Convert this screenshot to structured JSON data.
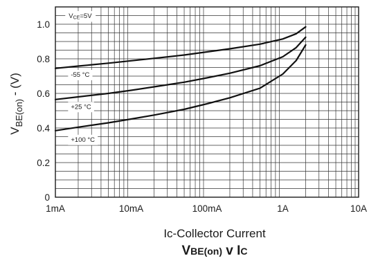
{
  "chart_data": {
    "type": "line",
    "title": "VBE(on) v IC",
    "title_parts": {
      "a": "V",
      "a_sub": "BE(on)",
      "b": " v I",
      "b_sub": "C"
    },
    "xlabel": "Ic-Collector Current",
    "ylabel": "VBE(on) - (V)",
    "ylabel_parts": {
      "a": "V",
      "a_sub": "BE(on)",
      "b": " - (V)"
    },
    "x_scale": "log",
    "x_unit": "A",
    "xlim": [
      0.001,
      10
    ],
    "ylim": [
      0,
      1.1
    ],
    "x_ticks": [
      {
        "value": 0.001,
        "label": "1mA"
      },
      {
        "value": 0.01,
        "label": "10mA"
      },
      {
        "value": 0.1,
        "label": "100mA"
      },
      {
        "value": 1,
        "label": "1A"
      },
      {
        "value": 10,
        "label": "10A"
      }
    ],
    "y_ticks": [
      {
        "value": 0,
        "label": "0"
      },
      {
        "value": 0.2,
        "label": "0.2"
      },
      {
        "value": 0.4,
        "label": "0.4"
      },
      {
        "value": 0.6,
        "label": "0.6"
      },
      {
        "value": 0.8,
        "label": "0.8"
      },
      {
        "value": 1.0,
        "label": "1.0"
      }
    ],
    "grid": true,
    "annotations": [
      {
        "text": "VCE=5V",
        "main": "V",
        "sub": "CE",
        "tail": "=5V",
        "x": 0.0015,
        "y": 1.05
      }
    ],
    "series": [
      {
        "name": "-55 °C",
        "label_x": 0.0016,
        "label_y": 0.71,
        "x": [
          0.001,
          0.002,
          0.005,
          0.01,
          0.02,
          0.05,
          0.1,
          0.2,
          0.5,
          1.0,
          1.5,
          2.0
        ],
        "y": [
          0.745,
          0.758,
          0.775,
          0.789,
          0.803,
          0.822,
          0.84,
          0.858,
          0.885,
          0.915,
          0.945,
          0.985
        ]
      },
      {
        "name": "+25 °C",
        "label_x": 0.0016,
        "label_y": 0.525,
        "x": [
          0.001,
          0.002,
          0.005,
          0.01,
          0.02,
          0.05,
          0.1,
          0.2,
          0.5,
          1.0,
          1.5,
          2.0
        ],
        "y": [
          0.565,
          0.58,
          0.6,
          0.618,
          0.638,
          0.665,
          0.69,
          0.717,
          0.76,
          0.812,
          0.865,
          0.925
        ]
      },
      {
        "name": "+100 °C",
        "label_x": 0.0016,
        "label_y": 0.335,
        "x": [
          0.001,
          0.002,
          0.005,
          0.01,
          0.02,
          0.05,
          0.1,
          0.2,
          0.5,
          1.0,
          1.5,
          2.0
        ],
        "y": [
          0.385,
          0.405,
          0.43,
          0.452,
          0.475,
          0.508,
          0.54,
          0.575,
          0.63,
          0.712,
          0.79,
          0.88
        ]
      }
    ]
  }
}
